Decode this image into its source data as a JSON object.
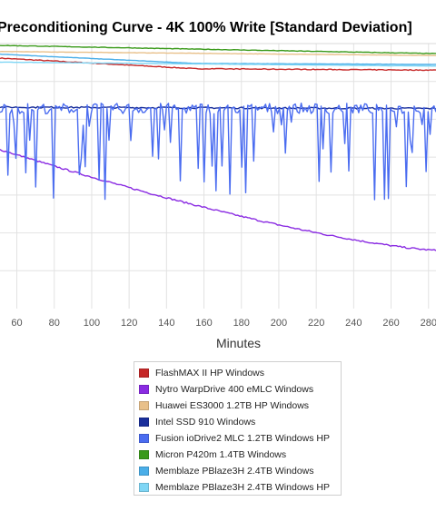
{
  "chart_data": {
    "type": "line",
    "title": "Preconditioning Curve - 4K 100% Write [Standard Deviation]",
    "xlabel": "Minutes",
    "ylabel": "",
    "x_ticks": [
      60,
      80,
      100,
      120,
      140,
      160,
      180,
      200,
      220,
      240,
      260,
      280
    ],
    "xlim": [
      51,
      284
    ],
    "ylim": [
      0,
      1
    ],
    "grid": true,
    "legend_position": "bottom",
    "series": [
      {
        "name": "FlashMAX II HP Windows",
        "color": "#c62828",
        "shape": "plateau",
        "params": [
          0.945,
          0.905,
          0.87,
          0.003
        ]
      },
      {
        "name": "Nytro WarpDrive 400 eMLC Windows",
        "color": "#8a2be2",
        "shape": "rise",
        "params": [
          0.6,
          0.22,
          1.35,
          0.006
        ]
      },
      {
        "name": "Huawei ES3000 1.2TB HP Windows",
        "color": "#e8c08a",
        "shape": "flat",
        "params": [
          0.97,
          0.955,
          0.001
        ]
      },
      {
        "name": "Intel SSD 910 Windows",
        "color": "#1a2f9c",
        "shape": "flat",
        "params": [
          0.76,
          0.755,
          0.006
        ]
      },
      {
        "name": "Fusion ioDrive2 MLC 1.2TB Windows HP",
        "color": "#4a6cf0",
        "shape": "spiky",
        "params": [
          0.755,
          0.1,
          0.25
        ]
      },
      {
        "name": "Micron P420m 1.4TB Windows",
        "color": "#3a9a1a",
        "shape": "flat",
        "params": [
          0.993,
          0.962,
          0.002
        ]
      },
      {
        "name": "Memblaze PBlaze3H 2.4TB Windows",
        "color": "#4aaee8",
        "shape": "plateau",
        "params": [
          0.96,
          0.925,
          0.9,
          0.001
        ]
      },
      {
        "name": "Memblaze PBlaze3H 2.4TB Windows HP",
        "color": "#7fd6f5",
        "shape": "flat",
        "params": [
          0.93,
          0.915,
          0.001
        ]
      }
    ]
  }
}
